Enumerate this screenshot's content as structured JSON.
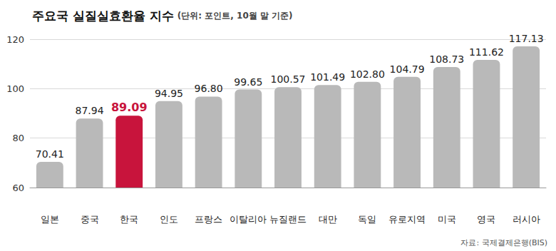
{
  "chart_data": {
    "type": "bar",
    "title": "주요국 실질실효환율 지수",
    "subtitle": "(단위: 포인트, 10월 말 기준)",
    "source": "자료: 국제결제은행(BIS)",
    "categories": [
      "일본",
      "중국",
      "한국",
      "인도",
      "프랑스",
      "이탈리아",
      "뉴질랜드",
      "대만",
      "독일",
      "유로지역",
      "미국",
      "영국",
      "러시아"
    ],
    "values": [
      70.41,
      87.94,
      89.09,
      94.95,
      96.8,
      99.65,
      100.57,
      101.49,
      102.8,
      104.79,
      108.73,
      111.62,
      117.13
    ],
    "value_labels": [
      "70.41",
      "87.94",
      "89.09",
      "94.95",
      "96.80",
      "99.65",
      "100.57",
      "101.49",
      "102.80",
      "104.79",
      "108.73",
      "111.62",
      "117.13"
    ],
    "colors": [
      "#b9b9b9",
      "#b9b9b9",
      "#c8143c",
      "#b9b9b9",
      "#b9b9b9",
      "#b9b9b9",
      "#b9b9b9",
      "#b9b9b9",
      "#b9b9b9",
      "#b9b9b9",
      "#b9b9b9",
      "#b9b9b9",
      "#b9b9b9"
    ],
    "ylim": [
      60,
      120
    ],
    "yticks": [
      60,
      80,
      100,
      120
    ],
    "grid": true,
    "data_labels": true
  }
}
